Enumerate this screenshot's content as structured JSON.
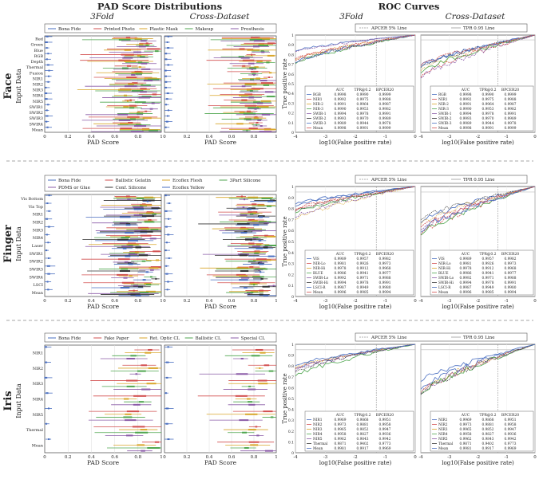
{
  "headers": {
    "pad": "PAD Score Distributions",
    "roc": "ROC Curves",
    "threefold": "3Fold",
    "cross": "Cross-Dataset"
  },
  "pad_x_ticks": [
    "0",
    "0.2",
    "0.4",
    "0.6",
    "0.8",
    "1"
  ],
  "roc_x_ticks": [
    "-4",
    "-3",
    "-2",
    "-1",
    "0"
  ],
  "roc_y_ticks": [
    "0",
    "0.1",
    "0.2",
    "0.3",
    "0.4",
    "0.5",
    "0.6",
    "0.7",
    "0.8",
    "0.9",
    "1"
  ],
  "labels": {
    "pad_xlabel": "PAD Score",
    "roc_xlabel": "log10(False positive rate)",
    "roc_ylabel": "True positive rate",
    "input_data": "Input Data",
    "apcer": "APCER 5% Line",
    "tpr": "TPR 0.95 Line"
  },
  "table_headers": [
    "AUC",
    "TPR@0.2",
    "BPCER20"
  ],
  "colors": {
    "bona_fide": "#4a6fc1",
    "series2": "#d24f4f",
    "series3": "#d9a62b",
    "series4": "#4fa64f",
    "series5": "#8b5ca8",
    "series6": "#333333"
  },
  "chart_data": [
    {
      "type": "boxplot",
      "modality": "Face",
      "legend": [
        "Bona Fide",
        "Printed Photo",
        "Plastic Mask",
        "Makeup",
        "Prosthesis"
      ],
      "rows": [
        "Red",
        "Green",
        "Blue",
        "RGB",
        "Depth",
        "Thermal",
        "Fusion",
        "NIR1",
        "NIR2",
        "NIR3",
        "NIR4",
        "NIR5",
        "SWIR1",
        "SWIR2",
        "SWIR3",
        "SWIR4",
        "Mean"
      ]
    },
    {
      "type": "line",
      "modality": "Face",
      "rows": [
        {
          "label": "RGB",
          "values": [
            "0.9998",
            "0.9990",
            "0.9999"
          ]
        },
        {
          "label": "NIR1",
          "values": [
            "0.9992",
            "0.9975",
            "0.9988"
          ]
        },
        {
          "label": "NIR-2",
          "values": [
            "0.9991",
            "0.9964",
            "0.9987"
          ]
        },
        {
          "label": "NIR-3",
          "values": [
            "0.9990",
            "0.9953",
            "0.9982"
          ]
        },
        {
          "label": "SWIR-1",
          "values": [
            "0.9994",
            "0.9978",
            "0.9991"
          ]
        },
        {
          "label": "SWIR-2",
          "values": [
            "0.9993",
            "0.9970",
            "0.9989"
          ]
        },
        {
          "label": "SWIR-3",
          "values": [
            "0.9989",
            "0.9944",
            "0.9978"
          ]
        },
        {
          "label": "Mean",
          "values": [
            "0.9998",
            "0.9991",
            "0.9999"
          ]
        }
      ]
    },
    {
      "type": "boxplot",
      "modality": "Finger",
      "legend": [
        "Bona Fide",
        "Ballistic Gelatin",
        "Ecoflex Flesh",
        "3Part Silicone",
        "PDMS or Glue",
        "Conf. Silicone",
        "Ecoflex Yellow"
      ],
      "rows": [
        "Vis Bottom",
        "Vis Top",
        "NIR1",
        "NIR2",
        "NIR3",
        "NIR4",
        "Laser",
        "SWIR1",
        "SWIR2",
        "SWIR3",
        "SWIR4",
        "LSCI",
        "Mean"
      ]
    },
    {
      "type": "line",
      "modality": "Finger",
      "rows": [
        {
          "label": "VIS",
          "values": [
            "0.9989",
            "0.9957",
            "0.9982"
          ]
        },
        {
          "label": "NIR-Lo",
          "values": [
            "0.9981",
            "0.9926",
            "0.9973"
          ]
        },
        {
          "label": "NIR-Hi",
          "values": [
            "0.9978",
            "0.9912",
            "0.9968"
          ]
        },
        {
          "label": "BLUE",
          "values": [
            "0.9986",
            "0.9941",
            "0.9977"
          ]
        },
        {
          "label": "SWIR-Lo",
          "values": [
            "0.9992",
            "0.9971",
            "0.9988"
          ]
        },
        {
          "label": "SWIR-Hi",
          "values": [
            "0.9994",
            "0.9978",
            "0.9991"
          ]
        },
        {
          "label": "LSCI-R",
          "values": [
            "0.9987",
            "0.9949",
            "0.9980"
          ]
        },
        {
          "label": "Mean",
          "values": [
            "0.9996",
            "0.9985",
            "0.9994"
          ]
        }
      ]
    },
    {
      "type": "boxplot",
      "modality": "Iris",
      "legend": [
        "Bona Fide",
        "Fake Paper",
        "Ret. Optic CL",
        "Ballistic CL",
        "Special CL"
      ],
      "rows": [
        "NIR1",
        "NIR2",
        "NIR3",
        "NIR4",
        "NIR5",
        "Thermal",
        "Mean"
      ]
    },
    {
      "type": "line",
      "modality": "Iris",
      "rows": [
        {
          "label": "NIR1",
          "values": [
            "0.9969",
            "0.9868",
            "0.9951"
          ]
        },
        {
          "label": "NIR2",
          "values": [
            "0.9973",
            "0.9881",
            "0.9958"
          ]
        },
        {
          "label": "NIR3",
          "values": [
            "0.9965",
            "0.9852",
            "0.9947"
          ]
        },
        {
          "label": "NIR4",
          "values": [
            "0.9958",
            "0.9827",
            "0.9936"
          ]
        },
        {
          "label": "NIR5",
          "values": [
            "0.9962",
            "0.9843",
            "0.9942"
          ]
        },
        {
          "label": "Thermal",
          "values": [
            "0.9871",
            "0.9402",
            "0.9773"
          ]
        },
        {
          "label": "Mean",
          "values": [
            "0.9981",
            "0.9917",
            "0.9969"
          ]
        }
      ]
    }
  ]
}
